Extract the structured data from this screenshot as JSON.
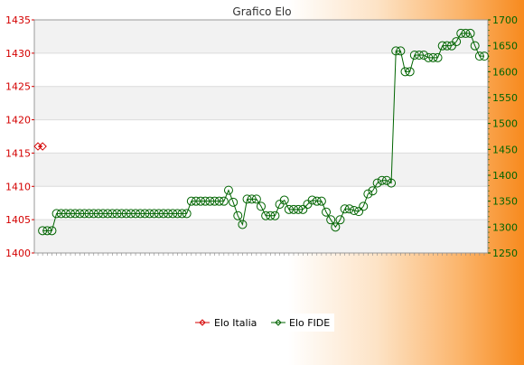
{
  "chart_data": {
    "type": "line",
    "title": "Grafico Elo",
    "left_axis": {
      "min": 1400,
      "max": 1435,
      "step": 5,
      "color": "#d40000"
    },
    "right_axis": {
      "min": 1250,
      "max": 1700,
      "step": 50,
      "color": "#006400"
    },
    "grid": true,
    "legend_position": "bottom-center",
    "x_label_count": 97,
    "series": [
      {
        "name": "Elo Italia",
        "axis": "left",
        "color": "#d40000",
        "marker": "diamond",
        "points": [
          [
            0,
            1416
          ],
          [
            1,
            1416
          ]
        ]
      },
      {
        "name": "Elo FIDE",
        "axis": "right",
        "color": "#006400",
        "marker": "circle",
        "points": [
          [
            1,
            1293
          ],
          [
            2,
            1293
          ],
          [
            3,
            1293
          ],
          [
            4,
            1326
          ],
          [
            5,
            1326
          ],
          [
            6,
            1326
          ],
          [
            7,
            1326
          ],
          [
            8,
            1326
          ],
          [
            9,
            1326
          ],
          [
            10,
            1326
          ],
          [
            11,
            1326
          ],
          [
            12,
            1326
          ],
          [
            13,
            1326
          ],
          [
            14,
            1326
          ],
          [
            15,
            1326
          ],
          [
            16,
            1326
          ],
          [
            17,
            1326
          ],
          [
            18,
            1326
          ],
          [
            19,
            1326
          ],
          [
            20,
            1326
          ],
          [
            21,
            1326
          ],
          [
            22,
            1326
          ],
          [
            23,
            1326
          ],
          [
            24,
            1326
          ],
          [
            25,
            1326
          ],
          [
            26,
            1326
          ],
          [
            27,
            1326
          ],
          [
            28,
            1326
          ],
          [
            29,
            1326
          ],
          [
            30,
            1326
          ],
          [
            31,
            1326
          ],
          [
            32,
            1326
          ],
          [
            33,
            1350
          ],
          [
            34,
            1350
          ],
          [
            35,
            1350
          ],
          [
            36,
            1350
          ],
          [
            37,
            1350
          ],
          [
            38,
            1350
          ],
          [
            39,
            1350
          ],
          [
            40,
            1350
          ],
          [
            41,
            1371
          ],
          [
            42,
            1348
          ],
          [
            43,
            1322
          ],
          [
            44,
            1305
          ],
          [
            45,
            1354
          ],
          [
            46,
            1354
          ],
          [
            47,
            1354
          ],
          [
            48,
            1340
          ],
          [
            49,
            1322
          ],
          [
            50,
            1322
          ],
          [
            51,
            1322
          ],
          [
            52,
            1344
          ],
          [
            53,
            1352
          ],
          [
            54,
            1334
          ],
          [
            55,
            1334
          ],
          [
            56,
            1334
          ],
          [
            57,
            1334
          ],
          [
            58,
            1344
          ],
          [
            59,
            1352
          ],
          [
            60,
            1350
          ],
          [
            61,
            1350
          ],
          [
            62,
            1329
          ],
          [
            63,
            1314
          ],
          [
            64,
            1300
          ],
          [
            65,
            1314
          ],
          [
            66,
            1335
          ],
          [
            67,
            1335
          ],
          [
            68,
            1332
          ],
          [
            69,
            1330
          ],
          [
            70,
            1340
          ],
          [
            71,
            1364
          ],
          [
            72,
            1370
          ],
          [
            73,
            1385
          ],
          [
            74,
            1390
          ],
          [
            75,
            1390
          ],
          [
            76,
            1385
          ],
          [
            77,
            1640
          ],
          [
            78,
            1640
          ],
          [
            79,
            1600
          ],
          [
            80,
            1600
          ],
          [
            81,
            1632
          ],
          [
            82,
            1632
          ],
          [
            83,
            1632
          ],
          [
            84,
            1627
          ],
          [
            85,
            1627
          ],
          [
            86,
            1627
          ],
          [
            87,
            1650
          ],
          [
            88,
            1650
          ],
          [
            89,
            1650
          ],
          [
            90,
            1658
          ],
          [
            91,
            1674
          ],
          [
            92,
            1674
          ],
          [
            93,
            1674
          ],
          [
            94,
            1650
          ],
          [
            95,
            1630
          ],
          [
            96,
            1630
          ]
        ]
      }
    ]
  }
}
